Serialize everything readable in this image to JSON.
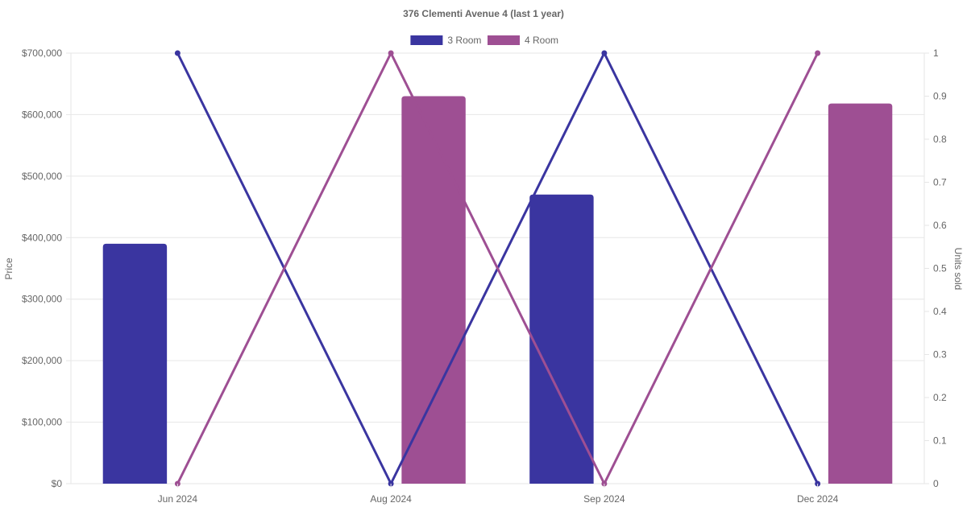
{
  "chart_data": {
    "type": "bar",
    "title": "376 Clementi Avenue 4 (last 1 year)",
    "categories": [
      "Jun 2024",
      "Aug 2024",
      "Sep 2024",
      "Dec 2024"
    ],
    "y_left": {
      "label": "Price",
      "ylim": [
        0,
        700000
      ],
      "ticks": [
        0,
        100000,
        200000,
        300000,
        400000,
        500000,
        600000,
        700000
      ],
      "tick_labels": [
        "$0",
        "$100,000",
        "$200,000",
        "$300,000",
        "$400,000",
        "$500,000",
        "$600,000",
        "$700,000"
      ]
    },
    "y_right": {
      "label": "Units sold",
      "ylim": [
        0,
        1
      ],
      "ticks": [
        0,
        0.1,
        0.2,
        0.3,
        0.4,
        0.5,
        0.6,
        0.7,
        0.8,
        0.9,
        1
      ],
      "tick_labels": [
        "0",
        "0.1",
        "0.2",
        "0.3",
        "0.4",
        "0.5",
        "0.6",
        "0.7",
        "0.8",
        "0.9",
        "1"
      ]
    },
    "legend": {
      "position": "top"
    },
    "grid": true,
    "series": [
      {
        "name": "3 Room",
        "color": "#3a35a0",
        "prices": [
          390000,
          null,
          470000,
          null
        ],
        "units_sold": [
          1,
          0,
          1,
          0
        ]
      },
      {
        "name": "4 Room",
        "color": "#9e4f93",
        "prices": [
          null,
          630000,
          null,
          618000
        ],
        "units_sold": [
          0,
          1,
          0,
          1
        ]
      }
    ]
  }
}
